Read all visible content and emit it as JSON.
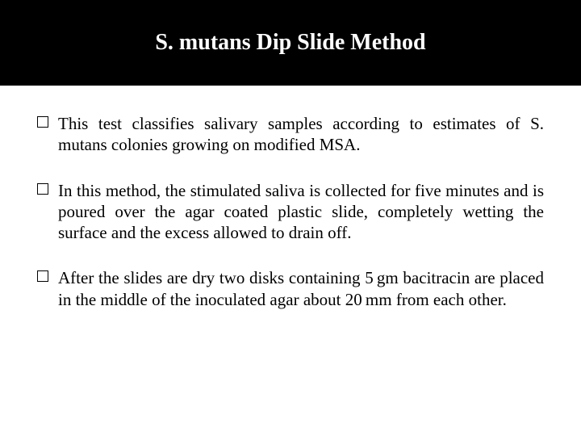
{
  "slide": {
    "title": "S. mutans Dip Slide Method",
    "title_color": "#ffffff",
    "title_bg": "#000000",
    "title_fontsize": 28,
    "body_fontsize": 21,
    "body_color": "#000000",
    "background": "#ffffff",
    "bullets": [
      {
        "text": "This test classifies salivary samples according to estimates of S. mutans colonies growing on modified MSA."
      },
      {
        "text": "In this method, the stimulated saliva is collected for five minutes and is poured over the agar coated plastic slide, completely wetting the surface and the excess allowed to drain off."
      },
      {
        "text": "After the slides are dry two disks containing 5 gm bacitracin are placed in the middle of the inoculated agar about 20 mm from each other."
      }
    ]
  }
}
